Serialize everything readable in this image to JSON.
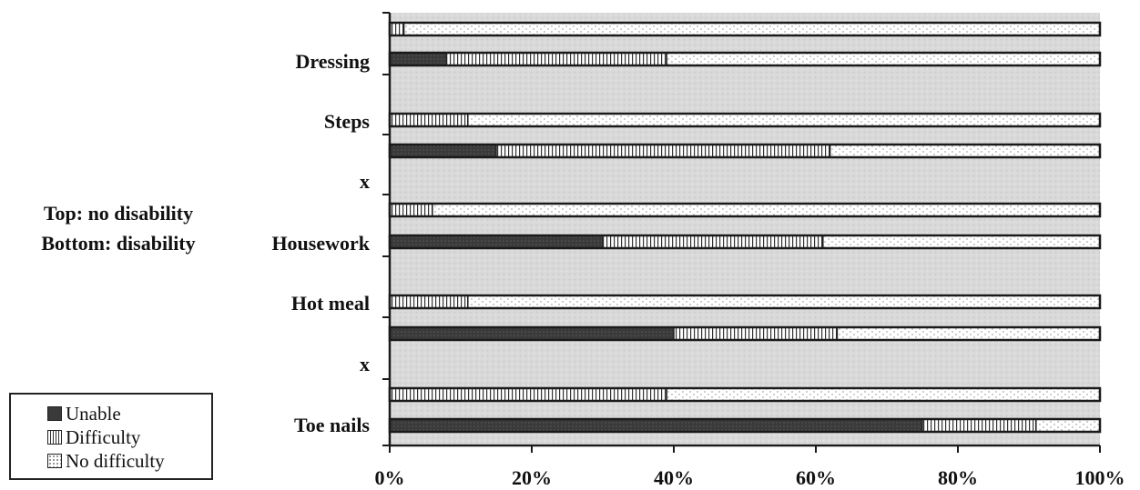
{
  "chart_data": {
    "type": "bar",
    "orientation": "horizontal",
    "stacked": "percent",
    "note_lines": [
      "Top: no disability",
      "Bottom: disability"
    ],
    "category_labels": [
      "Dressing",
      "Steps",
      "x",
      "Housework",
      "Hot meal",
      "x",
      "Toe nails"
    ],
    "bars": [
      {
        "group": "Dressing",
        "position": "top",
        "values": [
          0,
          2,
          98
        ]
      },
      {
        "group": "Dressing",
        "position": "bottom",
        "values": [
          8,
          31,
          61
        ]
      },
      {
        "group": "Steps",
        "position": "top",
        "values": [
          0,
          11,
          89
        ]
      },
      {
        "group": "Steps",
        "position": "bottom",
        "values": [
          15,
          47,
          38
        ]
      },
      {
        "group": "x",
        "position": "top",
        "values": [
          0,
          6,
          94
        ]
      },
      {
        "group": "x",
        "position": "bottom",
        "values": [
          30,
          31,
          39
        ]
      },
      {
        "group": "Hot meal",
        "position": "top",
        "values": [
          0,
          11,
          89
        ]
      },
      {
        "group": "Hot meal",
        "position": "bottom",
        "values": [
          40,
          23,
          37
        ]
      },
      {
        "group": "Toe nails",
        "position": "top",
        "values": [
          0,
          39,
          61
        ]
      },
      {
        "group": "Toe nails",
        "position": "bottom",
        "values": [
          75,
          16,
          9
        ]
      }
    ],
    "series": [
      {
        "name": "Unable"
      },
      {
        "name": "Difficulty"
      },
      {
        "name": "No difficulty"
      }
    ],
    "xticks": [
      "0%",
      "20%",
      "40%",
      "60%",
      "80%",
      "100%"
    ],
    "xlim": [
      0,
      100
    ],
    "grid": false,
    "legend_position": "bottom-left",
    "colors": {
      "unable": "#3a3a3a",
      "background": "#d6d6d6",
      "outline": "#222222"
    }
  }
}
